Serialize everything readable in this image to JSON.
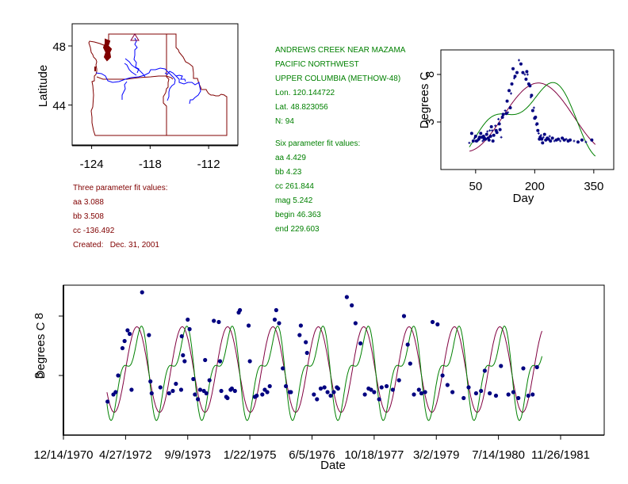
{
  "station": {
    "lines": [
      "ANDREWS CREEK NEAR MAZAMA",
      "PACIFIC NORTHWEST",
      "UPPER COLUMBIA (METHOW-48)",
      "Lon. 120.144722",
      "Lat. 48.823056",
      "N: 94"
    ],
    "six_param": {
      "title": "Six parameter fit values:",
      "lines": [
        "aa 4.429",
        "bb 4.23",
        "cc 261.844",
        "mag 5.242",
        "begin 46.363",
        "end 229.603"
      ]
    },
    "three_param": {
      "title": "Three parameter fit values:",
      "lines": [
        "aa 3.088",
        "bb 3.508",
        "cc -136.492",
        "Created:   Dec. 31, 2001"
      ]
    }
  },
  "colors": {
    "text_green": "#008000",
    "text_maroon": "#800000",
    "fit3": "#800040",
    "fit6": "#008000",
    "points": "#000080",
    "rivers": "#0000ff",
    "boundaries": "#800000"
  },
  "chart_data": [
    {
      "id": "map",
      "type": "scatter",
      "title": "",
      "xlabel": "",
      "ylabel": "Latitude",
      "xlim": [
        -126,
        -109
      ],
      "ylim": [
        41.3,
        49.5
      ],
      "x_ticks": [
        -124,
        -118,
        -112
      ],
      "x_tick_labels": [
        "-124",
        "-118",
        "-112"
      ],
      "y_ticks": [
        48,
        44
      ],
      "y_tick_labels": [
        "48",
        "44"
      ],
      "station_marker": {
        "lon": -120.144722,
        "lat": 48.823056,
        "shape": "triangle"
      }
    },
    {
      "id": "seasonal",
      "type": "scatter",
      "title": "",
      "xlabel": "Day",
      "ylabel": "Degrees C",
      "xlim": [
        -15,
        385
      ],
      "ylim": [
        -2,
        10.5
      ],
      "x_ticks": [
        50,
        200,
        350
      ],
      "x_tick_labels": [
        "50",
        "200",
        "350"
      ],
      "y_ticks": [
        8,
        3
      ],
      "y_tick_labels": [
        "8",
        "3"
      ],
      "series": [
        {
          "name": "Three parameter fit",
          "kind": "line",
          "aa": 3.088,
          "bb": 3.508,
          "cc": -136.492
        },
        {
          "name": "Six parameter fit",
          "kind": "line",
          "aa": 4.429,
          "bb": 4.23,
          "cc": 261.844,
          "mag": 5.242,
          "begin": 46.363,
          "end": 229.603
        },
        {
          "name": "Observations",
          "kind": "points",
          "x": [
            34,
            40,
            44,
            47,
            50,
            52,
            55,
            58,
            60,
            62,
            63,
            66,
            68,
            70,
            72,
            73,
            75,
            78,
            80,
            82,
            84,
            86,
            88,
            90,
            92,
            94,
            96,
            100,
            102,
            104,
            108,
            110,
            112,
            115,
            118,
            120,
            125,
            128,
            130,
            132,
            135,
            138,
            140,
            142,
            145,
            148,
            150,
            155,
            160,
            165,
            170,
            175,
            178,
            180,
            182,
            185,
            188,
            190,
            192,
            195,
            198,
            200,
            202,
            204,
            206,
            208,
            210,
            212,
            214,
            216,
            218,
            220,
            222,
            225,
            228,
            230,
            232,
            235,
            238,
            240,
            245,
            250,
            255,
            260,
            265,
            270,
            275,
            280,
            285,
            290,
            300,
            310,
            320,
            330,
            345
          ],
          "y": [
            0.8,
            1.8,
            1.0,
            1.3,
            1.5,
            1.0,
            1.0,
            1.2,
            1.4,
            1.4,
            1.8,
            1.4,
            1.0,
            1.5,
            1.2,
            1.4,
            1.2,
            1.7,
            2.0,
            1.3,
            1.1,
            2.1,
            1.5,
            2.5,
            2.1,
            1.0,
            1.6,
            2.6,
            2.1,
            1.9,
            3.3,
            2.8,
            2.2,
            1.4,
            3.5,
            3.8,
            4.2,
            3.9,
            5.2,
            4.0,
            6.3,
            4.5,
            6.0,
            7.0,
            8.6,
            7.6,
            7.8,
            8.2,
            9.5,
            9.1,
            8.2,
            8.0,
            7.5,
            8.3,
            8.0,
            7.0,
            6.8,
            5.6,
            5.8,
            4.2,
            4.5,
            3.4,
            3.5,
            2.7,
            2.8,
            2.1,
            1.8,
            1.2,
            1.4,
            1.6,
            1.2,
            0.8,
            1.4,
            1.7,
            1.1,
            1.1,
            1.3,
            1.2,
            1.5,
            1.0,
            1.3,
            1.0,
            1.1,
            1.2,
            1.0,
            1.3,
            1.1,
            1.2,
            1.0,
            1.1,
            1.0,
            0.9,
            1.1,
            0.9,
            1.1
          ]
        }
      ]
    },
    {
      "id": "timeseries",
      "type": "line",
      "title": "",
      "xlabel": "Date",
      "ylabel": "Degrees C",
      "ylim": [
        -2,
        10.5
      ],
      "y_ticks": [
        8,
        3
      ],
      "y_tick_labels": [
        "8",
        "3"
      ],
      "x_tick_labels": [
        "12/14/1970",
        "4/27/1972",
        "9/9/1973",
        "1/22/1975",
        "6/5/1976",
        "10/18/1977",
        "3/2/1979",
        "7/14/1980",
        "11/26/1981"
      ],
      "x_tick_days": [
        0,
        500,
        1000,
        1500,
        2000,
        2500,
        3000,
        3500,
        4000
      ],
      "x_range_days": [
        0,
        4350
      ],
      "fit_range_days": [
        350,
        3850
      ],
      "series": [
        {
          "name": "Three parameter fit",
          "kind": "line"
        },
        {
          "name": "Six parameter fit",
          "kind": "line"
        },
        {
          "name": "Observations",
          "kind": "points",
          "x_days": [
            355,
            402,
            420,
            440,
            475,
            492,
            516,
            533,
            548,
            633,
            688,
            700,
            710,
            780,
            850,
            880,
            905,
            947,
            952,
            962,
            975,
            1000,
            1015,
            1045,
            1058,
            1082,
            1100,
            1130,
            1140,
            1150,
            1175,
            1210,
            1250,
            1260,
            1270,
            1310,
            1320,
            1345,
            1355,
            1380,
            1410,
            1420,
            1490,
            1500,
            1540,
            1555,
            1600,
            1620,
            1640,
            1660,
            1700,
            1712,
            1735,
            1765,
            1790,
            1820,
            1830,
            1900,
            1910,
            1950,
            1960,
            2015,
            2040,
            2070,
            2100,
            2125,
            2150,
            2175,
            2200,
            2210,
            2280,
            2320,
            2350,
            2390,
            2425,
            2455,
            2475,
            2500,
            2540,
            2560,
            2600,
            2650,
            2700,
            2740,
            2770,
            2790,
            2820,
            2860,
            2880,
            2910,
            2970,
            3010,
            3050,
            3090,
            3130,
            3220,
            3260,
            3320,
            3360,
            3390,
            3430,
            3480,
            3520,
            3580,
            3620,
            3660,
            3700,
            3740,
            3775,
            3810
          ],
          "y": [
            0.8,
            1.4,
            1.6,
            3.0,
            5.3,
            5.9,
            6.8,
            6.5,
            1.8,
            10.0,
            6.4,
            2.5,
            1.5,
            2.0,
            1.5,
            1.7,
            2.3,
            1.8,
            6.3,
            4.7,
            4.2,
            7.7,
            6.9,
            2.7,
            1.4,
            1.0,
            1.8,
            1.7,
            4.3,
            1.5,
            2.6,
            7.6,
            7.5,
            4.2,
            1.7,
            1.2,
            1.1,
            1.8,
            1.9,
            1.7,
            8.3,
            8.5,
            7.2,
            4.2,
            1.2,
            1.3,
            1.4,
            1.8,
            1.6,
            2.1,
            7.7,
            8.5,
            7.4,
            3.6,
            2.1,
            1.6,
            1.6,
            6.4,
            7.2,
            5.8,
            4.9,
            1.4,
            1.0,
            1.9,
            2.0,
            1.6,
            1.3,
            1.6,
            2.0,
            1.9,
            9.6,
            8.9,
            7.4,
            5.7,
            1.4,
            1.9,
            1.8,
            1.6,
            1.0,
            2.0,
            2.1,
            1.8,
            2.6,
            8.0,
            5.6,
            4.0,
            1.4,
            1.8,
            1.5,
            1.6,
            7.5,
            7.3,
            3.0,
            2.2,
            1.6,
            1.1,
            2.0,
            1.5,
            1.7,
            3.4,
            1.5,
            1.3,
            3.8,
            1.4,
            1.6,
            1.1,
            3.6,
            1.3,
            1.4,
            3.7
          ]
        }
      ]
    }
  ]
}
